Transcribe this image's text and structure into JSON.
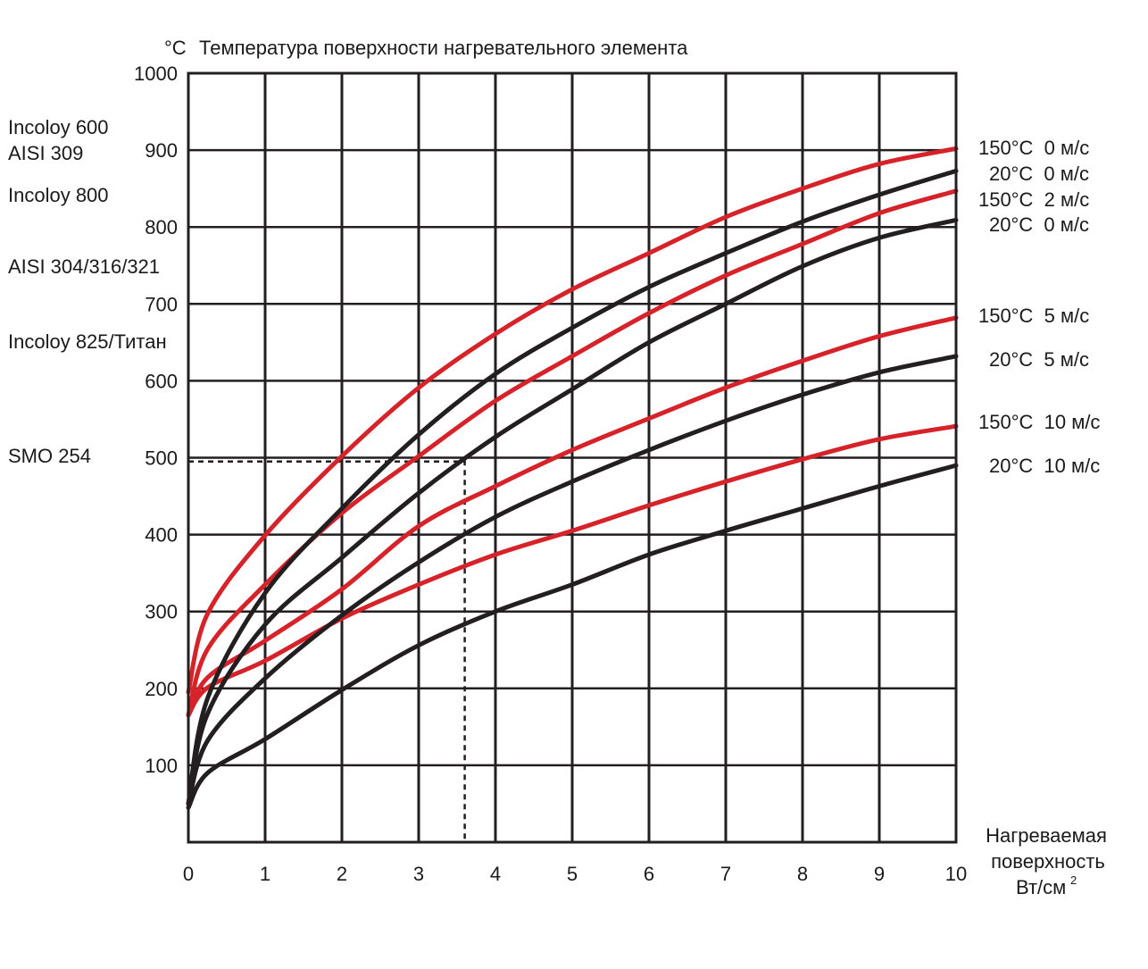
{
  "chart_data": {
    "type": "line",
    "title_unit": "°C",
    "title": "Температура поверхности нагревательного элемента",
    "xlabel": [
      "Нагреваемая",
      "поверхность",
      "Вт/см",
      "2"
    ],
    "xlim": [
      0,
      10
    ],
    "ylim": [
      0,
      1000
    ],
    "x_ticks": [
      "0",
      "1",
      "2",
      "3",
      "4",
      "5",
      "6",
      "7",
      "8",
      "9",
      "10"
    ],
    "y_ticks": [
      "100",
      "200",
      "300",
      "400",
      "500",
      "600",
      "700",
      "800",
      "900",
      "1000"
    ],
    "grid": true,
    "x": [
      0,
      0.25,
      1,
      2,
      3,
      4,
      5,
      6,
      7,
      8,
      9,
      10
    ],
    "series": [
      {
        "name": "150°C  0 м/с",
        "color": "#d6232a",
        "values": [
          195,
          297,
          399,
          502,
          591,
          661,
          719,
          766,
          813,
          850,
          882,
          902
        ]
      },
      {
        "name": "20°C  0 м/с",
        "color": "#231f20",
        "values": [
          50,
          187,
          324,
          434,
          530,
          609,
          669,
          722,
          766,
          807,
          842,
          873
        ]
      },
      {
        "name": "150°C  2 м/с",
        "color": "#d6232a",
        "values": [
          166,
          251,
          335,
          428,
          502,
          574,
          632,
          688,
          737,
          778,
          818,
          847
        ]
      },
      {
        "name": "20°C  0 м/с",
        "color": "#231f20",
        "values": [
          50,
          167,
          283,
          370,
          454,
          527,
          589,
          650,
          700,
          749,
          786,
          809
        ]
      },
      {
        "name": "150°C  5 м/с",
        "color": "#d6232a",
        "values": [
          165,
          214,
          262,
          329,
          411,
          463,
          510,
          551,
          591,
          626,
          658,
          682
        ]
      },
      {
        "name": "20°C  5 м/с",
        "color": "#231f20",
        "values": [
          50,
          132,
          213,
          295,
          364,
          423,
          469,
          510,
          548,
          582,
          611,
          632
        ]
      },
      {
        "name": "150°C  10 м/с",
        "color": "#d6232a",
        "values": [
          165,
          201,
          236,
          291,
          335,
          374,
          405,
          438,
          469,
          498,
          524,
          541
        ]
      },
      {
        "name": "20°C  10 м/с",
        "color": "#231f20",
        "values": [
          45,
          90,
          134,
          198,
          256,
          300,
          335,
          374,
          405,
          434,
          463,
          490
        ]
      }
    ],
    "reference_line": {
      "x": 3.6,
      "y": 495,
      "style": "dashed"
    },
    "materials": [
      {
        "name": "Incoloy 600",
        "temp": 930
      },
      {
        "name": "AISI 309",
        "temp": 900
      },
      {
        "name": "Incoloy 800",
        "temp": 845
      },
      {
        "name": "AISI 304/316/321",
        "temp": 750
      },
      {
        "name": "Incoloy 825/Титан",
        "temp": 655
      },
      {
        "name": "SMO 254",
        "temp": 505
      }
    ]
  }
}
